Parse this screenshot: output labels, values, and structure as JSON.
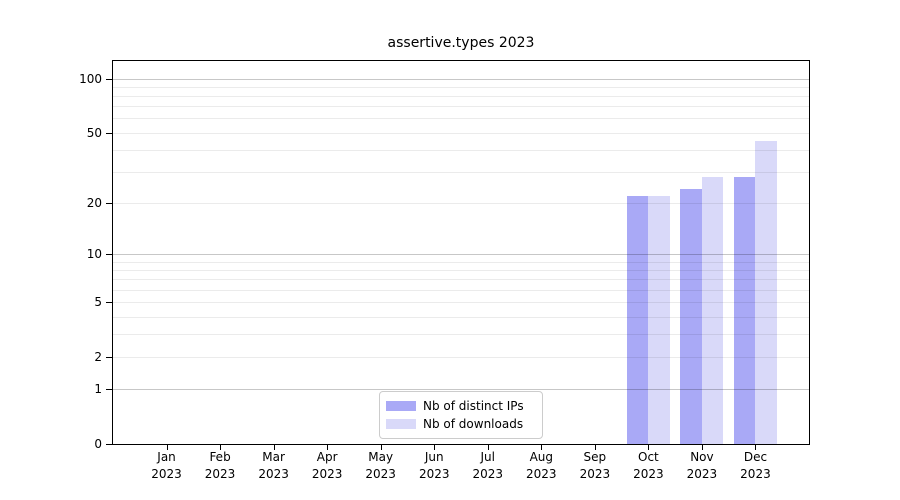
{
  "chart_data": {
    "type": "bar",
    "title": "assertive.types 2023",
    "x_year": "2023",
    "categories": [
      "Jan",
      "Feb",
      "Mar",
      "Apr",
      "May",
      "Jun",
      "Jul",
      "Aug",
      "Sep",
      "Oct",
      "Nov",
      "Dec"
    ],
    "series": [
      {
        "name": "Nb of distinct IPs",
        "color": "#a9a9f6",
        "values": [
          0,
          0,
          0,
          0,
          0,
          0,
          0,
          0,
          0,
          22,
          24,
          28
        ]
      },
      {
        "name": "Nb of downloads",
        "color": "#d9d9f9",
        "values": [
          0,
          0,
          0,
          0,
          0,
          0,
          0,
          0,
          0,
          22,
          28,
          45
        ]
      }
    ],
    "y_scale": "log10(value+1)",
    "y_axis_ticks": [
      0,
      1,
      2,
      5,
      10,
      20,
      50,
      100
    ],
    "y_major_gridlines": [
      1,
      10,
      100
    ],
    "y_minor_gridlines": [
      2,
      3,
      4,
      5,
      6,
      7,
      8,
      9,
      20,
      30,
      40,
      50,
      60,
      70,
      80,
      90
    ],
    "ylim": [
      0,
      125
    ],
    "grid": "horizontal",
    "legend_position": "bottom-center",
    "colors": {
      "major_grid": "rgba(0,0,0,0.22)",
      "minor_grid": "rgba(0,0,0,0.08)",
      "spine": "#000000",
      "background": "#ffffff"
    }
  }
}
